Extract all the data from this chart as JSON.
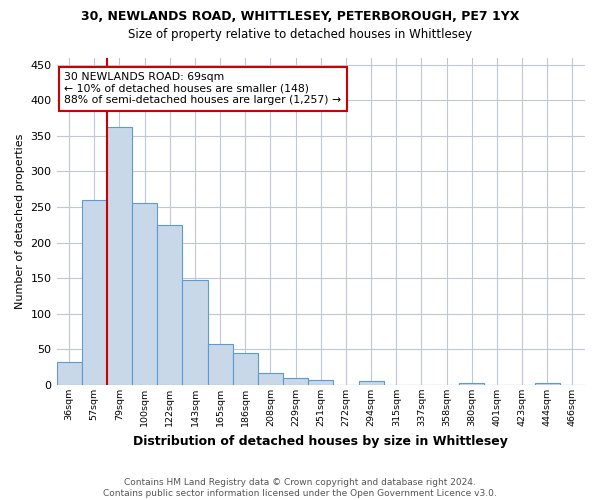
{
  "title_line1": "30, NEWLANDS ROAD, WHITTLESEY, PETERBOROUGH, PE7 1YX",
  "title_line2": "Size of property relative to detached houses in Whittlesey",
  "xlabel": "Distribution of detached houses by size in Whittlesey",
  "ylabel": "Number of detached properties",
  "footer": "Contains HM Land Registry data © Crown copyright and database right 2024.\nContains public sector information licensed under the Open Government Licence v3.0.",
  "bin_labels": [
    "36sqm",
    "57sqm",
    "79sqm",
    "100sqm",
    "122sqm",
    "143sqm",
    "165sqm",
    "186sqm",
    "208sqm",
    "229sqm",
    "251sqm",
    "272sqm",
    "294sqm",
    "315sqm",
    "337sqm",
    "358sqm",
    "380sqm",
    "401sqm",
    "423sqm",
    "444sqm",
    "466sqm"
  ],
  "bar_values": [
    32,
    260,
    363,
    255,
    224,
    148,
    57,
    45,
    17,
    10,
    7,
    0,
    5,
    0,
    0,
    0,
    3,
    0,
    0,
    3,
    0
  ],
  "bar_color": "#c8d8e8",
  "bar_edge_color": "#5b9bd5",
  "vline_color": "#cc0000",
  "vline_pos": 1.5,
  "annotation_text": "30 NEWLANDS ROAD: 69sqm\n← 10% of detached houses are smaller (148)\n88% of semi-detached houses are larger (1,257) →",
  "annotation_box_color": "white",
  "annotation_box_edge": "#cc0000",
  "ylim": [
    0,
    460
  ],
  "yticks": [
    0,
    50,
    100,
    150,
    200,
    250,
    300,
    350,
    400,
    450
  ],
  "background_color": "white",
  "grid_color": "#c0c8d8"
}
